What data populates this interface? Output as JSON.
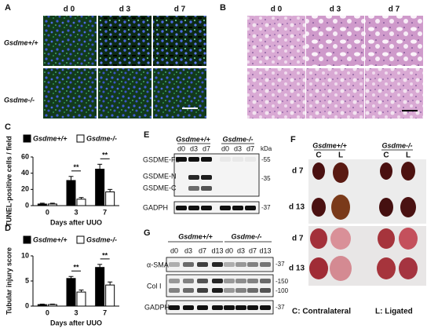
{
  "panels": {
    "A": {
      "label": "A",
      "columns": [
        "d 0",
        "d 3",
        "d 7"
      ],
      "rows": [
        "Gsdme+/+",
        "Gsdme-/-"
      ]
    },
    "B": {
      "label": "B",
      "columns": [
        "d 0",
        "d 3",
        "d 7"
      ]
    },
    "E": {
      "label": "E",
      "groups": [
        "Gsdme+/+",
        "Gsdme-/-"
      ],
      "lanes": [
        "d0",
        "d3",
        "d7",
        "d0",
        "d3",
        "d7"
      ],
      "unit": "kDa",
      "bands": [
        "GSDME-FL",
        "GSDME-N",
        "GSDME-C",
        "GADPH"
      ],
      "markers": [
        "-55",
        "-35",
        "-37"
      ]
    },
    "G": {
      "label": "G",
      "groups": [
        "Gsdme+/+",
        "Gsdme-/-"
      ],
      "lanes": [
        "d0",
        "d3",
        "d7",
        "d13",
        "d0",
        "d3",
        "d7",
        "d13"
      ],
      "bands": [
        "α-SMA",
        "Col I",
        "GADPH"
      ],
      "markers": [
        "-37",
        "-150",
        "-100",
        "-37"
      ]
    },
    "F": {
      "label": "F",
      "groups": [
        "Gsdme+/+",
        "Gsdme-/-"
      ],
      "columns": [
        "C",
        "L",
        "C",
        "L"
      ],
      "rows": [
        "d 7",
        "d 13"
      ],
      "notes": [
        "C: Contralateral",
        "L: Ligated"
      ]
    }
  },
  "chart_data": [
    {
      "type": "bar",
      "label": "C",
      "y_label": "TUNEL-positive cells / field",
      "x_label": "Days after UUO",
      "categories": [
        "0",
        "3",
        "7"
      ],
      "series": [
        {
          "name": "Gsdme+/+",
          "color": "#000000",
          "values": [
            2,
            31,
            45
          ],
          "errors": [
            1,
            5,
            6
          ]
        },
        {
          "name": "Gsdme-/-",
          "color": "#ffffff",
          "values": [
            2,
            8,
            17
          ],
          "errors": [
            1,
            2,
            3
          ]
        }
      ],
      "ylim": [
        0,
        60
      ],
      "yticks": [
        0,
        20,
        40,
        60
      ],
      "annotations": [
        "**",
        "**"
      ]
    },
    {
      "type": "bar",
      "label": "D",
      "y_label": "Tubular injury score",
      "x_label": "Days after UUO",
      "categories": [
        "0",
        "3",
        "7"
      ],
      "series": [
        {
          "name": "Gsdme+/+",
          "color": "#000000",
          "values": [
            0.3,
            5.5,
            7.7
          ],
          "errors": [
            0.1,
            0.4,
            0.6
          ]
        },
        {
          "name": "Gsdme-/-",
          "color": "#ffffff",
          "values": [
            0.3,
            2.8,
            4.2
          ],
          "errors": [
            0.1,
            0.4,
            0.6
          ]
        }
      ],
      "ylim": [
        0,
        10
      ],
      "yticks": [
        0,
        5,
        10
      ],
      "annotations": [
        "**",
        "**"
      ]
    }
  ]
}
